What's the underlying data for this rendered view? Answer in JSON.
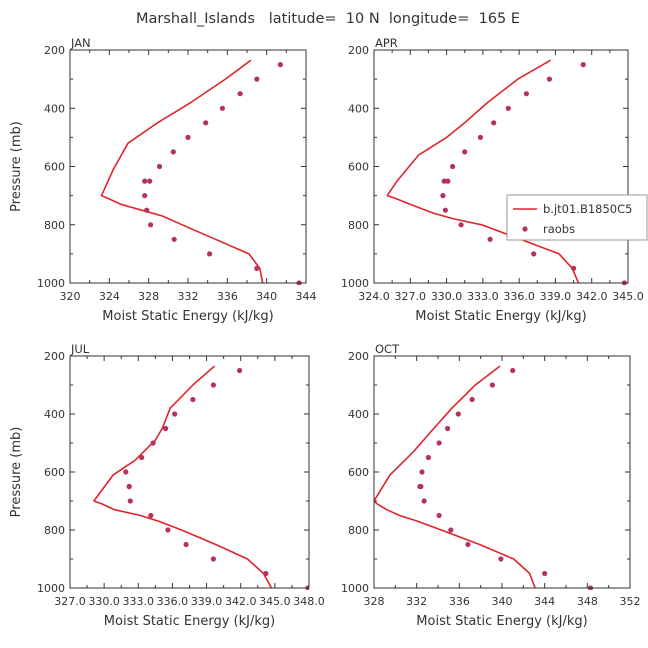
{
  "figure": {
    "title": "Marshall_Islands   latitude=  10 N  longitude=  165 E"
  },
  "colors": {
    "model_line": "#e0242a",
    "obs_marker": "#b5325a",
    "axis": "#333333",
    "background": "#ffffff"
  },
  "chart_data": [
    {
      "type": "line",
      "panel": "JAN",
      "xlabel": "Moist Static Energy (kJ/kg)",
      "ylabel": "Pressure (mb)",
      "xlim": [
        320,
        344
      ],
      "ylim": [
        1000,
        200
      ],
      "y_inverted": true,
      "xticks": [
        320,
        324,
        328,
        332,
        336,
        340,
        344
      ],
      "xtick_labels": [
        "320",
        "324",
        "328",
        "332",
        "336",
        "340",
        "344"
      ],
      "yticks": [
        200,
        400,
        600,
        800,
        1000
      ],
      "ytick_labels": [
        "200",
        "400",
        "600",
        "800",
        "1000"
      ],
      "legend": null,
      "series": [
        {
          "name": "b.jt01.B1850C5",
          "style": "line",
          "x": [
            339.6,
            339.3,
            338.2,
            334.8,
            331.4,
            329.4,
            327.3,
            325.2,
            323.9,
            323.2,
            324.4,
            325.9
          ],
          "y": [
            1000,
            950,
            900,
            850,
            800,
            770,
            750,
            730,
            710,
            700,
            610,
            520
          ]
        },
        {
          "name": "b.jt01.B1850C5",
          "style": "line",
          "x": [
            325.9,
            328.9,
            332.3,
            335.8,
            338.4
          ],
          "y": [
            520,
            450,
            380,
            300,
            235
          ]
        },
        {
          "name": "raobs",
          "style": "markers",
          "x": [
            343.3,
            339.0,
            334.2,
            330.6,
            328.2,
            327.8,
            327.6,
            327.6,
            328.1,
            329.1,
            330.5,
            332.0,
            333.8,
            335.5,
            337.3,
            339.0,
            341.4
          ],
          "y": [
            1000,
            950,
            900,
            850,
            800,
            750,
            700,
            650,
            650,
            600,
            550,
            500,
            450,
            400,
            350,
            300,
            250
          ]
        }
      ]
    },
    {
      "type": "line",
      "panel": "APR",
      "xlabel": "Moist Static Energy (kJ/kg)",
      "ylabel": "",
      "xlim": [
        324,
        345
      ],
      "ylim": [
        1000,
        200
      ],
      "y_inverted": true,
      "xticks": [
        324,
        327,
        330,
        333,
        336,
        339,
        342,
        345
      ],
      "xtick_labels": [
        "324.0",
        "327.0",
        "330.0",
        "333.0",
        "336.0",
        "339.0",
        "342.0",
        "345.0"
      ],
      "yticks": [
        200,
        400,
        600,
        800,
        1000
      ],
      "ytick_labels": [
        "200",
        "400",
        "600",
        "800",
        "1000"
      ],
      "legend": {
        "entries": [
          "b.jt01.B1850C5",
          "raobs"
        ],
        "placement": "right"
      },
      "series": [
        {
          "name": "b.jt01.B1850C5",
          "style": "line",
          "x": [
            340.9,
            340.4,
            339.3,
            336.1,
            332.9,
            330.6,
            328.9,
            327.0,
            325.8,
            325.1,
            325.9,
            327.7
          ],
          "y": [
            1000,
            950,
            900,
            850,
            800,
            780,
            760,
            730,
            710,
            700,
            650,
            560
          ]
        },
        {
          "name": "b.jt01.B1850C5",
          "style": "line",
          "x": [
            327.7,
            330.0,
            331.5,
            333.4,
            335.9,
            338.6
          ],
          "y": [
            560,
            500,
            450,
            380,
            300,
            235
          ]
        },
        {
          "name": "raobs",
          "style": "markers",
          "x": [
            344.7,
            340.5,
            337.2,
            333.6,
            331.2,
            329.9,
            329.7,
            329.8,
            330.1,
            330.5,
            331.5,
            332.8,
            333.9,
            335.1,
            336.6,
            338.5,
            341.3
          ],
          "y": [
            1000,
            950,
            900,
            850,
            800,
            750,
            700,
            650,
            650,
            600,
            550,
            500,
            450,
            400,
            350,
            300,
            250
          ]
        }
      ]
    },
    {
      "type": "line",
      "panel": "JUL",
      "xlabel": "Moist Static Energy (kJ/kg)",
      "ylabel": "Pressure (mb)",
      "xlim": [
        327,
        348
      ],
      "ylim": [
        1000,
        200
      ],
      "y_inverted": true,
      "xticks": [
        327,
        330,
        333,
        336,
        339,
        342,
        345,
        348
      ],
      "xtick_labels": [
        "327.0",
        "330.0",
        "333.0",
        "336.0",
        "339.0",
        "342.0",
        "345.0",
        "348.0"
      ],
      "yticks": [
        200,
        400,
        600,
        800,
        1000
      ],
      "ytick_labels": [
        "200",
        "400",
        "600",
        "800",
        "1000"
      ],
      "legend": null,
      "series": [
        {
          "name": "b.jt01.B1850C5",
          "style": "line",
          "x": [
            344.7,
            344.0,
            342.6,
            339.8,
            336.8,
            334.8,
            333.2,
            330.9,
            329.8,
            329.1,
            330.8,
            332.7
          ],
          "y": [
            1000,
            950,
            900,
            850,
            800,
            770,
            750,
            730,
            710,
            700,
            610,
            560
          ]
        },
        {
          "name": "b.jt01.B1850C5",
          "style": "line",
          "x": [
            332.7,
            334.5,
            335.1,
            335.8,
            337.8,
            339.7
          ],
          "y": [
            560,
            490,
            450,
            380,
            300,
            235
          ]
        },
        {
          "name": "raobs",
          "style": "markers",
          "x": [
            347.9,
            344.2,
            339.6,
            337.2,
            335.6,
            334.1,
            332.3,
            332.2,
            332.2,
            331.9,
            333.3,
            334.3,
            335.4,
            336.2,
            337.8,
            339.6,
            341.9
          ],
          "y": [
            1000,
            950,
            900,
            850,
            800,
            750,
            700,
            650,
            650,
            600,
            550,
            500,
            450,
            400,
            350,
            300,
            250
          ]
        }
      ]
    },
    {
      "type": "line",
      "panel": "OCT",
      "xlabel": "Moist Static Energy (kJ/kg)",
      "ylabel": "",
      "xlim": [
        328,
        352
      ],
      "ylim": [
        1000,
        200
      ],
      "y_inverted": true,
      "xticks": [
        328,
        332,
        336,
        340,
        344,
        348,
        352
      ],
      "xtick_labels": [
        "328",
        "332",
        "336",
        "340",
        "344",
        "348",
        "352"
      ],
      "yticks": [
        200,
        400,
        600,
        800,
        1000
      ],
      "ytick_labels": [
        "200",
        "400",
        "600",
        "800",
        "1000"
      ],
      "legend": null,
      "series": [
        {
          "name": "b.jt01.B1850C5",
          "style": "line",
          "x": [
            343.1,
            342.6,
            341.1,
            337.9,
            334.3,
            332.1,
            330.4,
            329.2,
            328.3,
            328.0,
            329.5,
            331.7
          ],
          "y": [
            1000,
            950,
            900,
            850,
            800,
            770,
            750,
            730,
            710,
            700,
            610,
            530
          ]
        },
        {
          "name": "b.jt01.B1850C5",
          "style": "line",
          "x": [
            331.7,
            333.6,
            335.3,
            337.5,
            339.8
          ],
          "y": [
            530,
            450,
            380,
            300,
            235
          ]
        },
        {
          "name": "raobs",
          "style": "markers",
          "x": [
            348.3,
            344.0,
            339.9,
            336.8,
            335.2,
            334.1,
            332.7,
            332.4,
            332.3,
            332.5,
            333.1,
            334.1,
            334.9,
            335.9,
            337.2,
            339.1,
            341.0
          ],
          "y": [
            1000,
            950,
            900,
            850,
            800,
            750,
            700,
            650,
            650,
            600,
            550,
            500,
            450,
            400,
            350,
            300,
            250
          ]
        }
      ]
    }
  ]
}
